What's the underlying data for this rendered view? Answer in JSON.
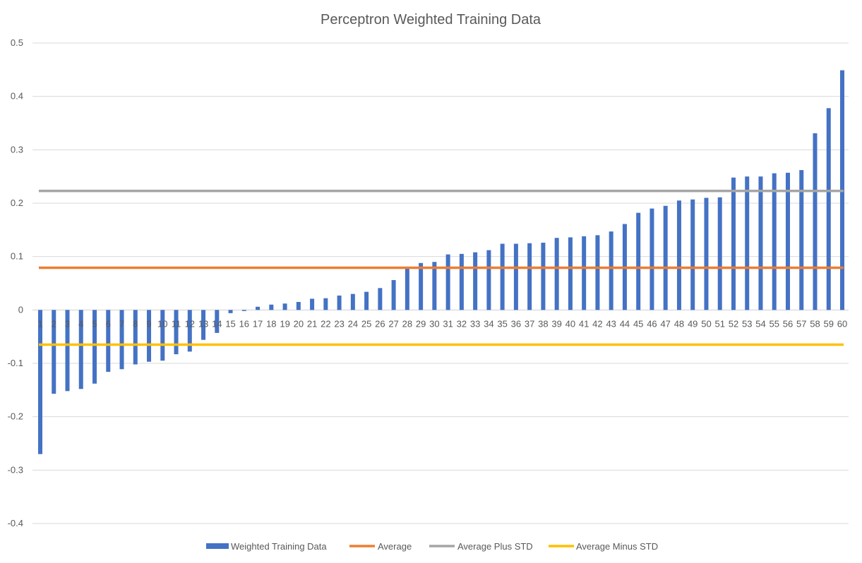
{
  "chart_data": {
    "type": "bar",
    "title": "Perceptron Weighted Training Data",
    "xlabel": "",
    "ylabel": "",
    "ylim": [
      -0.4,
      0.5
    ],
    "yticks": [
      0.5,
      0.4,
      0.3,
      0.2,
      0.1,
      0,
      -0.1,
      -0.2,
      -0.3,
      -0.4
    ],
    "grid": true,
    "legend_position": "bottom",
    "categories": [
      "1",
      "2",
      "3",
      "4",
      "5",
      "6",
      "7",
      "8",
      "9",
      "10",
      "11",
      "12",
      "13",
      "14",
      "15",
      "16",
      "17",
      "18",
      "19",
      "20",
      "21",
      "22",
      "23",
      "24",
      "25",
      "26",
      "27",
      "28",
      "29",
      "30",
      "31",
      "32",
      "33",
      "34",
      "35",
      "36",
      "37",
      "38",
      "39",
      "40",
      "41",
      "42",
      "43",
      "44",
      "45",
      "46",
      "47",
      "48",
      "49",
      "50",
      "51",
      "52",
      "53",
      "54",
      "55",
      "56",
      "57",
      "58",
      "59",
      "60"
    ],
    "series": [
      {
        "name": "Weighted Training Data",
        "kind": "bar",
        "color": "#4472C4",
        "values": [
          -0.27,
          -0.157,
          -0.152,
          -0.148,
          -0.138,
          -0.116,
          -0.111,
          -0.102,
          -0.097,
          -0.095,
          -0.083,
          -0.078,
          -0.056,
          -0.043,
          -0.006,
          -0.002,
          0.006,
          0.01,
          0.012,
          0.015,
          0.021,
          0.022,
          0.027,
          0.03,
          0.034,
          0.041,
          0.056,
          0.078,
          0.088,
          0.09,
          0.104,
          0.105,
          0.108,
          0.112,
          0.124,
          0.124,
          0.125,
          0.126,
          0.135,
          0.136,
          0.138,
          0.14,
          0.147,
          0.161,
          0.182,
          0.19,
          0.195,
          0.205,
          0.207,
          0.21,
          0.211,
          0.248,
          0.25,
          0.25,
          0.256,
          0.257,
          0.262,
          0.331,
          0.378,
          0.449
        ]
      },
      {
        "name": "Average",
        "kind": "line",
        "color": "#ED7D31",
        "value": 0.079
      },
      {
        "name": "Average Plus STD",
        "kind": "line",
        "color": "#A5A5A5",
        "value": 0.223
      },
      {
        "name": "Average Minus STD",
        "kind": "line",
        "color": "#FFC000",
        "value": -0.065
      }
    ]
  }
}
